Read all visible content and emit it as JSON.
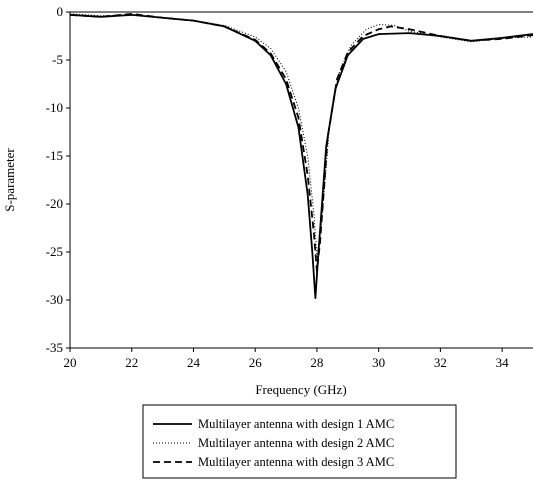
{
  "chart_data": {
    "type": "line",
    "title": "",
    "xlabel": "Frequency (GHz)",
    "ylabel": "S-parameter",
    "xlim": [
      20,
      35
    ],
    "ylim": [
      -35,
      0
    ],
    "xticks": [
      20,
      22,
      24,
      26,
      28,
      30,
      32,
      34
    ],
    "yticks": [
      0,
      -5,
      -10,
      -15,
      -20,
      -25,
      -30,
      -35
    ],
    "grid": false,
    "legend_position": "bottom-center",
    "series": [
      {
        "name": "Multilayer antenna with design 1 AMC",
        "style": "solid",
        "color": "#000000",
        "points": [
          [
            20,
            -0.3
          ],
          [
            21,
            -0.5
          ],
          [
            22,
            -0.3
          ],
          [
            23,
            -0.6
          ],
          [
            24,
            -0.9
          ],
          [
            25,
            -1.5
          ],
          [
            26,
            -3
          ],
          [
            26.5,
            -4.5
          ],
          [
            27,
            -7.5
          ],
          [
            27.4,
            -12
          ],
          [
            27.7,
            -19
          ],
          [
            27.85,
            -25
          ],
          [
            27.95,
            -29.8
          ],
          [
            28.05,
            -25
          ],
          [
            28.3,
            -14
          ],
          [
            28.6,
            -8
          ],
          [
            29,
            -4.5
          ],
          [
            29.5,
            -2.8
          ],
          [
            30,
            -2.3
          ],
          [
            31,
            -2.2
          ],
          [
            32,
            -2.5
          ],
          [
            33,
            -3.0
          ],
          [
            34,
            -2.7
          ],
          [
            35,
            -2.3
          ]
        ]
      },
      {
        "name": "Multilayer antenna with design 2 AMC",
        "style": "dotted",
        "color": "#000000",
        "points": [
          [
            20,
            -0.2
          ],
          [
            21,
            -0.4
          ],
          [
            22,
            -0.3
          ],
          [
            23,
            -0.6
          ],
          [
            24,
            -0.9
          ],
          [
            25,
            -1.4
          ],
          [
            26,
            -2.6
          ],
          [
            26.5,
            -3.8
          ],
          [
            27,
            -6.2
          ],
          [
            27.4,
            -10
          ],
          [
            27.7,
            -15
          ],
          [
            27.9,
            -21
          ],
          [
            28.0,
            -25.5
          ],
          [
            28.15,
            -22
          ],
          [
            28.4,
            -12
          ],
          [
            28.7,
            -6.5
          ],
          [
            29.1,
            -3.5
          ],
          [
            29.6,
            -1.8
          ],
          [
            30,
            -1.3
          ],
          [
            30.5,
            -1.4
          ],
          [
            31,
            -2.0
          ],
          [
            32,
            -2.6
          ],
          [
            33,
            -3.1
          ],
          [
            34,
            -2.7
          ],
          [
            35,
            -2.6
          ]
        ]
      },
      {
        "name": "Multilayer antenna with design 3 AMC",
        "style": "dashed",
        "color": "#000000",
        "points": [
          [
            20,
            -0.3
          ],
          [
            21,
            -0.5
          ],
          [
            22,
            -0.2
          ],
          [
            23,
            -0.6
          ],
          [
            24,
            -0.9
          ],
          [
            25,
            -1.5
          ],
          [
            26,
            -2.9
          ],
          [
            26.5,
            -4.3
          ],
          [
            27,
            -7.0
          ],
          [
            27.4,
            -11
          ],
          [
            27.7,
            -17
          ],
          [
            27.9,
            -23
          ],
          [
            28.0,
            -27
          ],
          [
            28.1,
            -24
          ],
          [
            28.35,
            -13
          ],
          [
            28.65,
            -7
          ],
          [
            29,
            -4.2
          ],
          [
            29.5,
            -2.5
          ],
          [
            30,
            -1.8
          ],
          [
            30.4,
            -1.5
          ],
          [
            31,
            -1.8
          ],
          [
            32,
            -2.5
          ],
          [
            33,
            -3.0
          ],
          [
            34,
            -2.8
          ],
          [
            35,
            -2.4
          ]
        ]
      }
    ]
  }
}
